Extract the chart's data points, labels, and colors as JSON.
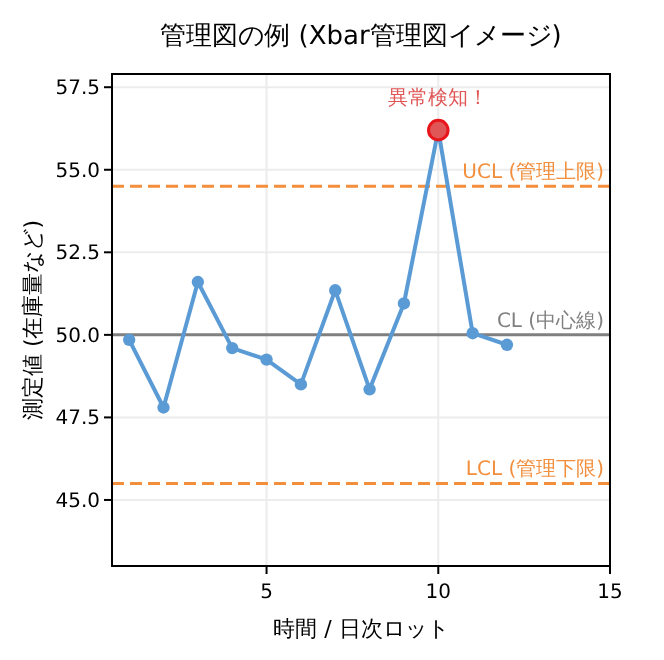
{
  "chart_data": {
    "type": "line",
    "title": "管理図の例 (Xbar管理図イメージ)",
    "xlabel": "時間 / 日次ロット",
    "ylabel": "測定値 (在庫量など)",
    "x": [
      1,
      2,
      3,
      4,
      5,
      6,
      7,
      8,
      9,
      10,
      11,
      12
    ],
    "series": [
      {
        "color": "#5b9bd5",
        "values": [
          49.85,
          47.8,
          51.6,
          49.6,
          49.25,
          48.5,
          51.35,
          48.35,
          50.95,
          56.2,
          50.05,
          49.7
        ]
      },
      {
        "type": "scatter",
        "color": "#e05555",
        "x": [
          10
        ],
        "values": [
          56.2
        ]
      }
    ],
    "xlim": [
      0.5,
      15
    ],
    "xticks": [
      5,
      10,
      15
    ],
    "ylim": [
      43,
      57.9
    ],
    "yticks": [
      {
        "value": 45,
        "label": "45.0"
      },
      47.5,
      {
        "value": 50,
        "label": "50.0"
      },
      52.5,
      {
        "value": 55,
        "label": "55.0"
      },
      57.5
    ],
    "grid": true,
    "marker": "circle",
    "line_style": "solid",
    "ref_lines": [
      {
        "axis": "y",
        "value": 54.5,
        "label": "UCL (管理上限)",
        "color": "#f28e3c",
        "line_style": "dashed"
      },
      {
        "axis": "y",
        "value": 50,
        "label": "CL (中心線)",
        "color": "#808080",
        "line_style": "solid"
      },
      {
        "axis": "y",
        "value": 45.5,
        "label": "LCL (管理下限)",
        "color": "#f28e3c",
        "line_style": "dashed"
      }
    ],
    "annotations": [
      {
        "text": "異常検知！",
        "x": 10,
        "y": 56.2
      }
    ]
  }
}
